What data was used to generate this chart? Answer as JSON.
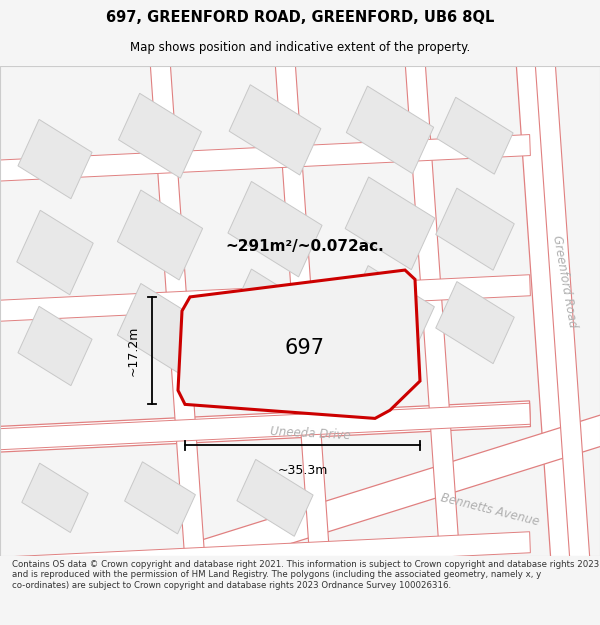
{
  "title_line1": "697, GREENFORD ROAD, GREENFORD, UB6 8QL",
  "title_line2": "Map shows position and indicative extent of the property.",
  "footer_text": "Contains OS data © Crown copyright and database right 2021. This information is subject to Crown copyright and database rights 2023 and is reproduced with the permission of HM Land Registry. The polygons (including the associated geometry, namely x, y co-ordinates) are subject to Crown copyright and database rights 2023 Ordnance Survey 100026316.",
  "area_label": "~291m²/~0.072ac.",
  "plot_number": "697",
  "dim_width": "~35.3m",
  "dim_height": "~17.2m",
  "street_label1": "Uneeda Drive",
  "street_label2": "Greenford Road",
  "street_label3": "Bennetts Avenue",
  "bg_color": "#f5f5f5",
  "map_bg": "#ffffff",
  "road_stroke_color": "#e08080",
  "plot_stroke": "#cc0000",
  "text_color": "#000000",
  "street_text_color": "#b0b0b0",
  "bld_fill": "#e8e8e8",
  "bld_edge": "#c8c8c8",
  "dim_line_color": "#000000"
}
